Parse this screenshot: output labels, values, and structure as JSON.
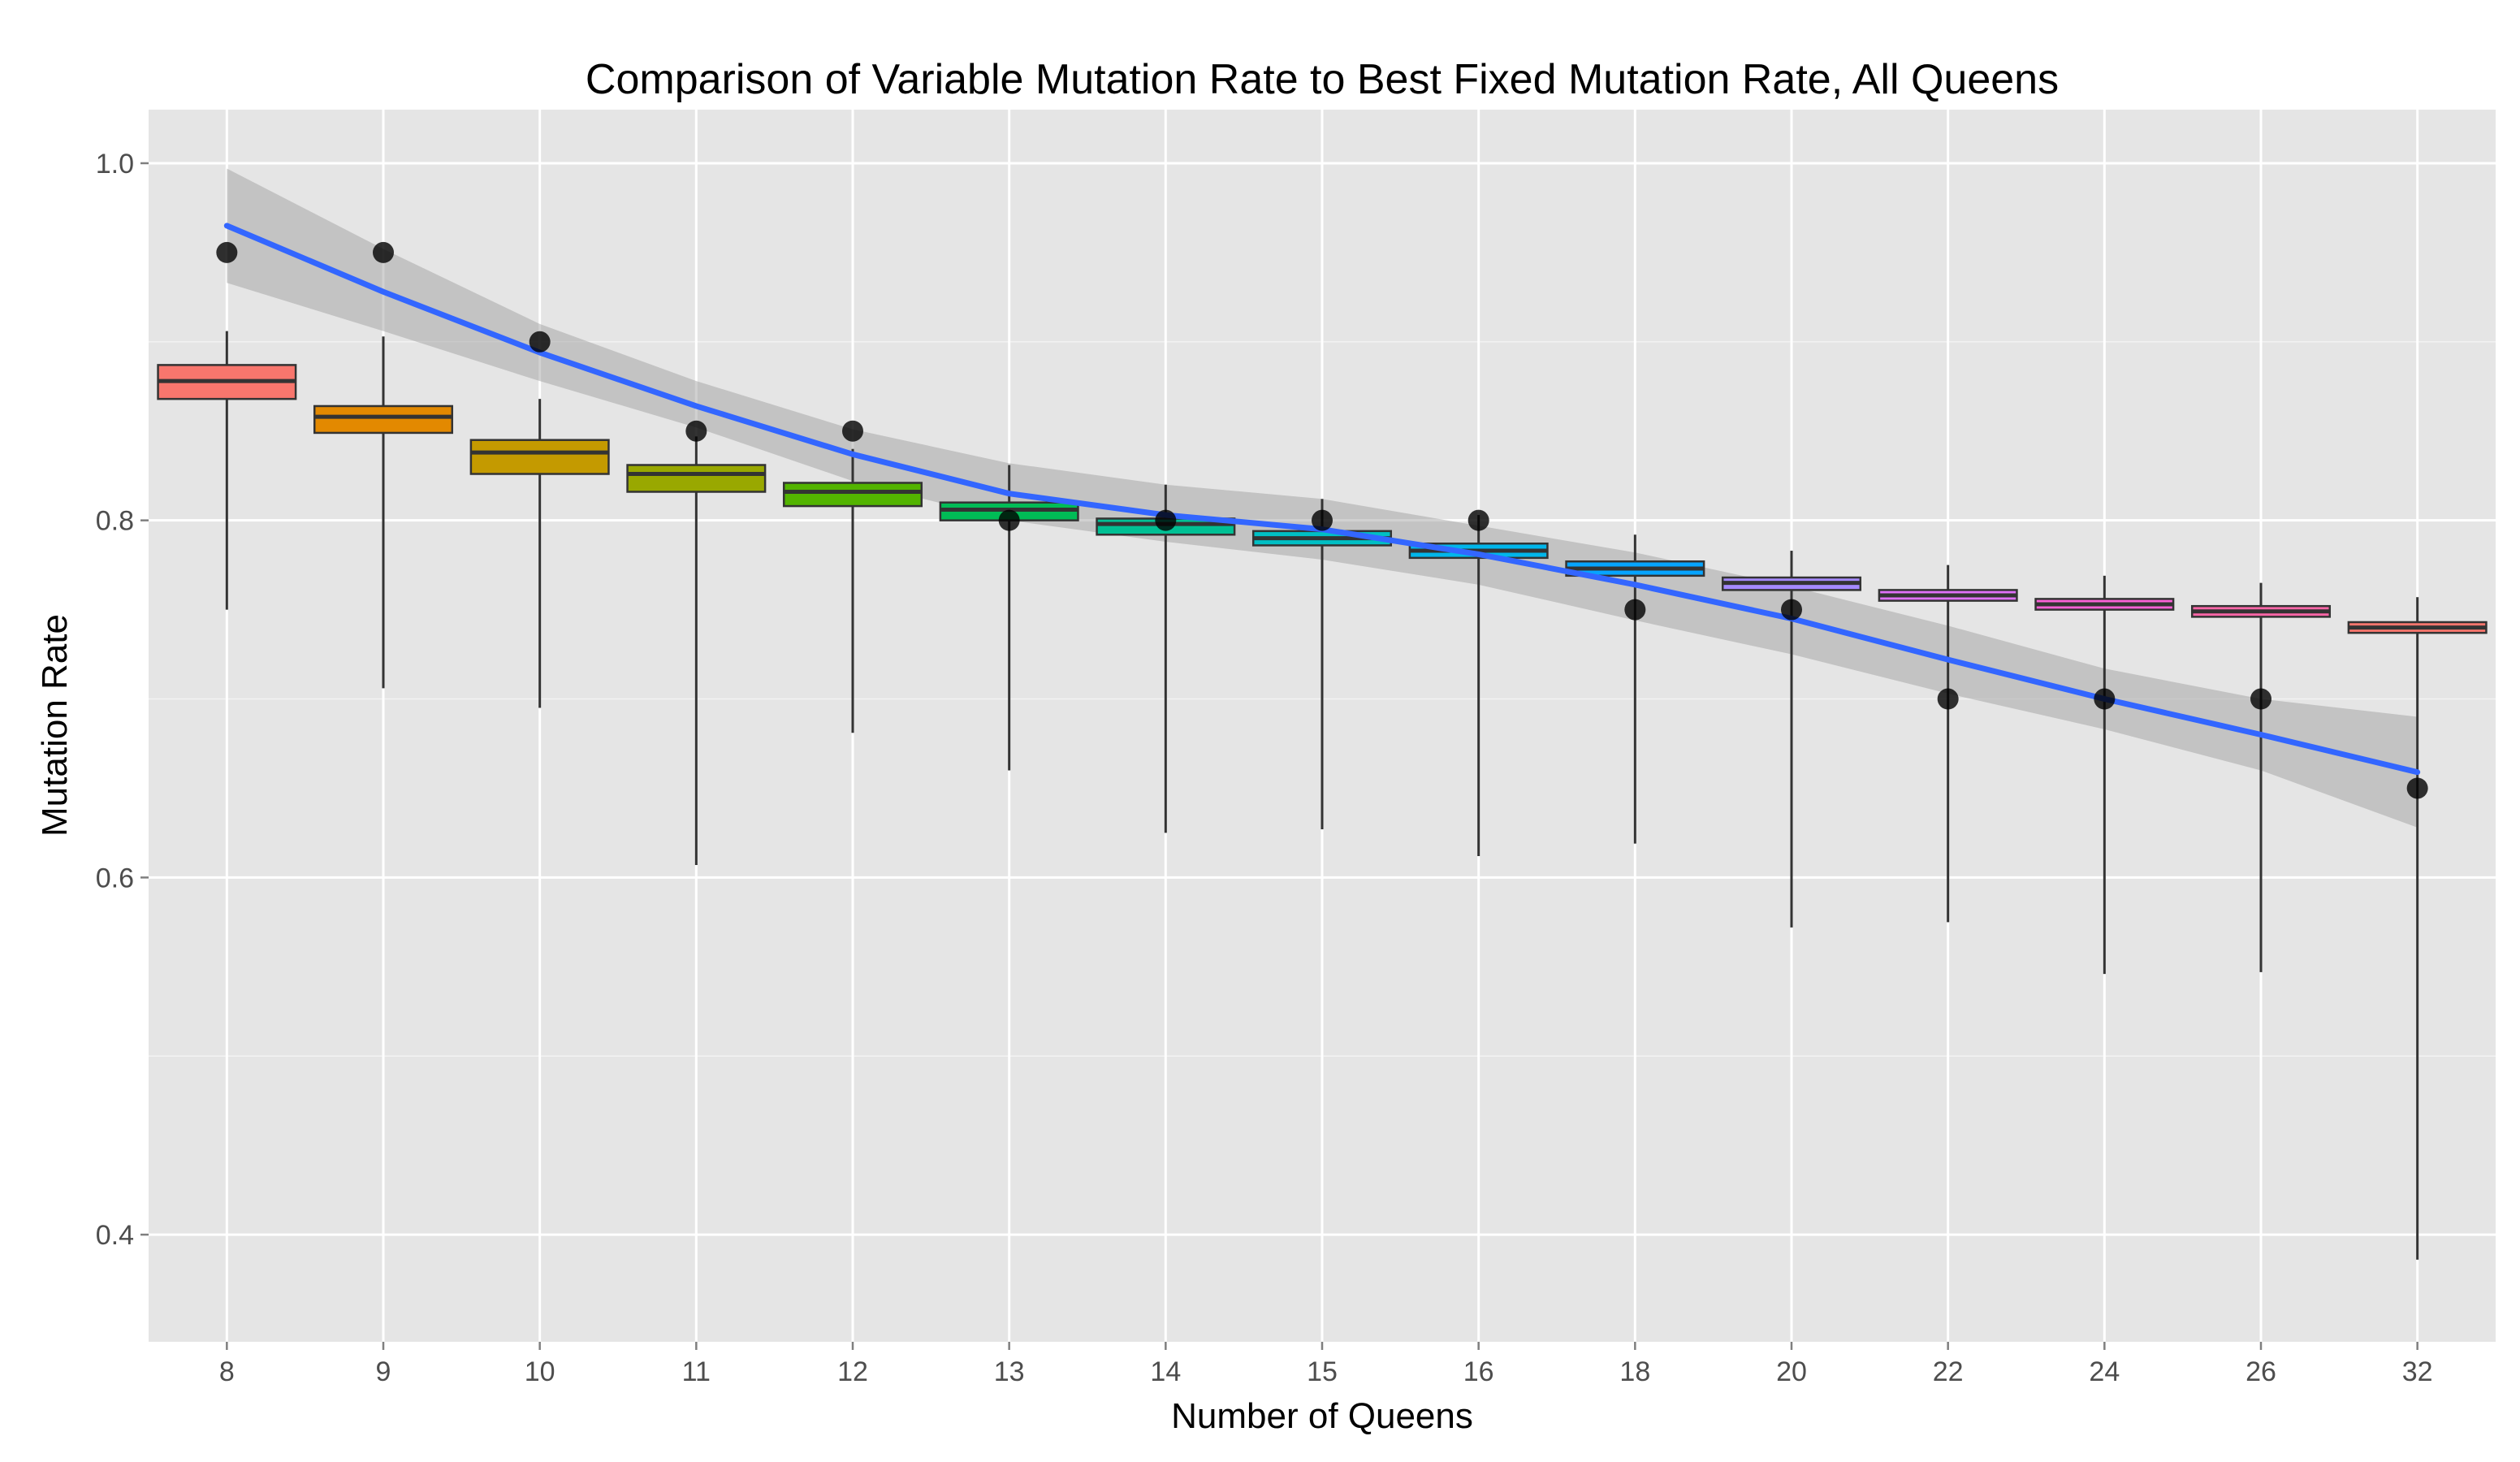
{
  "chart_data": {
    "type": "boxplot",
    "title": "Comparison of Variable Mutation Rate to Best Fixed Mutation Rate, All Queens",
    "xlabel": "Number of Queens",
    "ylabel": "Mutation Rate",
    "ylim": [
      0.34,
      1.03
    ],
    "y_ticks": [
      "0.4",
      "0.6",
      "0.8",
      "1.0"
    ],
    "categories": [
      "8",
      "9",
      "10",
      "11",
      "12",
      "13",
      "14",
      "15",
      "16",
      "18",
      "20",
      "22",
      "24",
      "26",
      "32"
    ],
    "boxes": [
      {
        "category": "8",
        "color": "#F8766D",
        "min": 0.75,
        "q1": 0.868,
        "median": 0.878,
        "q3": 0.887,
        "max": 0.906
      },
      {
        "category": "9",
        "color": "#E38900",
        "min": 0.706,
        "q1": 0.849,
        "median": 0.858,
        "q3": 0.864,
        "max": 0.903
      },
      {
        "category": "10",
        "color": "#C49A00",
        "min": 0.695,
        "q1": 0.826,
        "median": 0.838,
        "q3": 0.845,
        "max": 0.868
      },
      {
        "category": "11",
        "color": "#99A800",
        "min": 0.607,
        "q1": 0.816,
        "median": 0.826,
        "q3": 0.831,
        "max": 0.847
      },
      {
        "category": "12",
        "color": "#53B400",
        "min": 0.681,
        "q1": 0.808,
        "median": 0.816,
        "q3": 0.821,
        "max": 0.84
      },
      {
        "category": "13",
        "color": "#00BC56",
        "min": 0.66,
        "q1": 0.8,
        "median": 0.806,
        "q3": 0.81,
        "max": 0.831
      },
      {
        "category": "14",
        "color": "#00C094",
        "min": 0.625,
        "q1": 0.792,
        "median": 0.798,
        "q3": 0.801,
        "max": 0.82
      },
      {
        "category": "15",
        "color": "#00BFC4",
        "min": 0.627,
        "q1": 0.786,
        "median": 0.79,
        "q3": 0.794,
        "max": 0.812
      },
      {
        "category": "16",
        "color": "#00B6EB",
        "min": 0.612,
        "q1": 0.779,
        "median": 0.783,
        "q3": 0.787,
        "max": 0.803
      },
      {
        "category": "18",
        "color": "#06A4FF",
        "min": 0.619,
        "q1": 0.769,
        "median": 0.773,
        "q3": 0.777,
        "max": 0.792
      },
      {
        "category": "20",
        "color": "#A58AFF",
        "min": 0.572,
        "q1": 0.761,
        "median": 0.765,
        "q3": 0.768,
        "max": 0.783
      },
      {
        "category": "22",
        "color": "#DF70F8",
        "min": 0.575,
        "q1": 0.755,
        "median": 0.758,
        "q3": 0.761,
        "max": 0.775
      },
      {
        "category": "24",
        "color": "#FB61D7",
        "min": 0.546,
        "q1": 0.75,
        "median": 0.753,
        "q3": 0.756,
        "max": 0.769
      },
      {
        "category": "26",
        "color": "#FF66A8",
        "min": 0.547,
        "q1": 0.746,
        "median": 0.749,
        "q3": 0.752,
        "max": 0.765
      },
      {
        "category": "32",
        "color": "#F8766D",
        "min": 0.386,
        "q1": 0.737,
        "median": 0.74,
        "q3": 0.743,
        "max": 0.757
      }
    ],
    "points": [
      {
        "category": "8",
        "value": 0.95
      },
      {
        "category": "9",
        "value": 0.95
      },
      {
        "category": "10",
        "value": 0.9
      },
      {
        "category": "11",
        "value": 0.85
      },
      {
        "category": "12",
        "value": 0.85
      },
      {
        "category": "13",
        "value": 0.8
      },
      {
        "category": "14",
        "value": 0.8
      },
      {
        "category": "15",
        "value": 0.8
      },
      {
        "category": "16",
        "value": 0.8
      },
      {
        "category": "18",
        "value": 0.75
      },
      {
        "category": "20",
        "value": 0.75
      },
      {
        "category": "22",
        "value": 0.7
      },
      {
        "category": "24",
        "value": 0.7
      },
      {
        "category": "26",
        "value": 0.7
      },
      {
        "category": "32",
        "value": 0.65
      }
    ],
    "smooth": {
      "color": "#3366FF",
      "band_color": "#999999",
      "values": [
        0.965,
        0.928,
        0.894,
        0.864,
        0.837,
        0.815,
        0.803,
        0.795,
        0.781,
        0.764,
        0.745,
        0.722,
        0.7,
        0.68,
        0.659
      ],
      "band_low": [
        0.933,
        0.906,
        0.878,
        0.852,
        0.822,
        0.8,
        0.788,
        0.778,
        0.764,
        0.744,
        0.725,
        0.703,
        0.683,
        0.66,
        0.628
      ],
      "band_high": [
        0.997,
        0.952,
        0.91,
        0.878,
        0.851,
        0.832,
        0.82,
        0.812,
        0.797,
        0.782,
        0.763,
        0.741,
        0.717,
        0.7,
        0.69
      ]
    },
    "grid": true,
    "legend": "none"
  }
}
